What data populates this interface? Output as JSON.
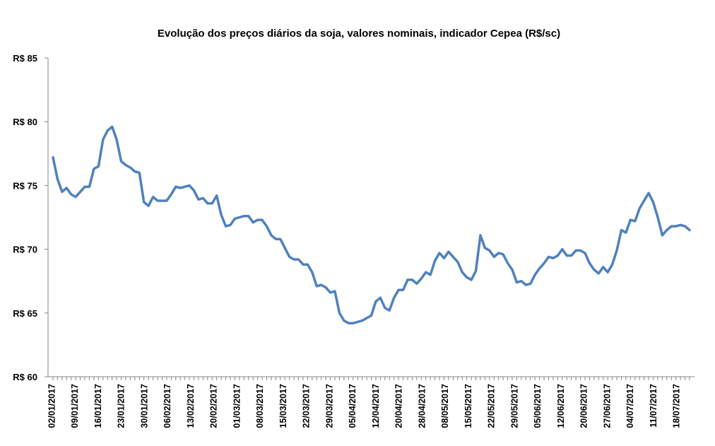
{
  "chart_data": {
    "type": "line",
    "title": "Evolução dos preços diários da soja, valores nominais, indicador Cepea (R$/sc)",
    "xlabel": "",
    "ylabel": "",
    "ylim": [
      60,
      85
    ],
    "y_tick_values": [
      60,
      65,
      70,
      75,
      80,
      85
    ],
    "y_tick_labels": [
      "R$ 60",
      "R$ 65",
      "R$ 70",
      "R$ 75",
      "R$ 80",
      "R$ 85"
    ],
    "x_tick_labels": [
      "02/01/2017",
      "09/01/2017",
      "16/01/2017",
      "23/01/2017",
      "30/01/2017",
      "06/02/2017",
      "13/02/2017",
      "20/02/2017",
      "01/03/2017",
      "08/03/2017",
      "15/03/2017",
      "22/03/2017",
      "29/03/2017",
      "05/04/2017",
      "12/04/2017",
      "20/04/2017",
      "28/04/2017",
      "08/05/2017",
      "15/05/2017",
      "22/05/2017",
      "29/05/2017",
      "05/06/2017",
      "12/06/2017",
      "20/06/2017",
      "27/06/2017",
      "04/07/2017",
      "11/07/2017",
      "18/07/2017"
    ],
    "grid": false,
    "legend": "none",
    "series": [
      {
        "color": "#4F81BD",
        "values": [
          77.2,
          75.5,
          74.5,
          74.8,
          74.3,
          74.1,
          74.5,
          74.9,
          74.9,
          76.3,
          76.5,
          78.6,
          79.3,
          79.6,
          78.6,
          76.9,
          76.6,
          76.4,
          76.1,
          76.0,
          73.7,
          73.4,
          74.1,
          73.8,
          73.8,
          73.8,
          74.3,
          74.9,
          74.8,
          74.9,
          75.0,
          74.6,
          73.9,
          74.0,
          73.6,
          73.6,
          74.2,
          72.7,
          71.8,
          71.9,
          72.4,
          72.5,
          72.6,
          72.6,
          72.1,
          72.3,
          72.3,
          71.8,
          71.1,
          70.8,
          70.8,
          70.1,
          69.4,
          69.2,
          69.2,
          68.8,
          68.8,
          68.2,
          67.1,
          67.2,
          67.0,
          66.6,
          66.7,
          65.0,
          64.4,
          64.2,
          64.2,
          64.3,
          64.4,
          64.6,
          64.8,
          65.9,
          66.2,
          65.4,
          65.2,
          66.2,
          66.8,
          66.8,
          67.6,
          67.6,
          67.3,
          67.7,
          68.2,
          68.0,
          69.1,
          69.7,
          69.3,
          69.8,
          69.4,
          69.0,
          68.2,
          67.8,
          67.6,
          68.3,
          71.1,
          70.1,
          69.9,
          69.4,
          69.7,
          69.6,
          68.9,
          68.4,
          67.4,
          67.5,
          67.2,
          67.3,
          68.0,
          68.5,
          68.9,
          69.4,
          69.3,
          69.5,
          70.0,
          69.5,
          69.5,
          69.9,
          69.9,
          69.7,
          68.9,
          68.4,
          68.1,
          68.6,
          68.2,
          68.8,
          69.9,
          71.5,
          71.3,
          72.3,
          72.2,
          73.2,
          73.8,
          74.4,
          73.7,
          72.5,
          71.1,
          71.5,
          71.8,
          71.8,
          71.9,
          71.8,
          71.5
        ]
      }
    ]
  }
}
